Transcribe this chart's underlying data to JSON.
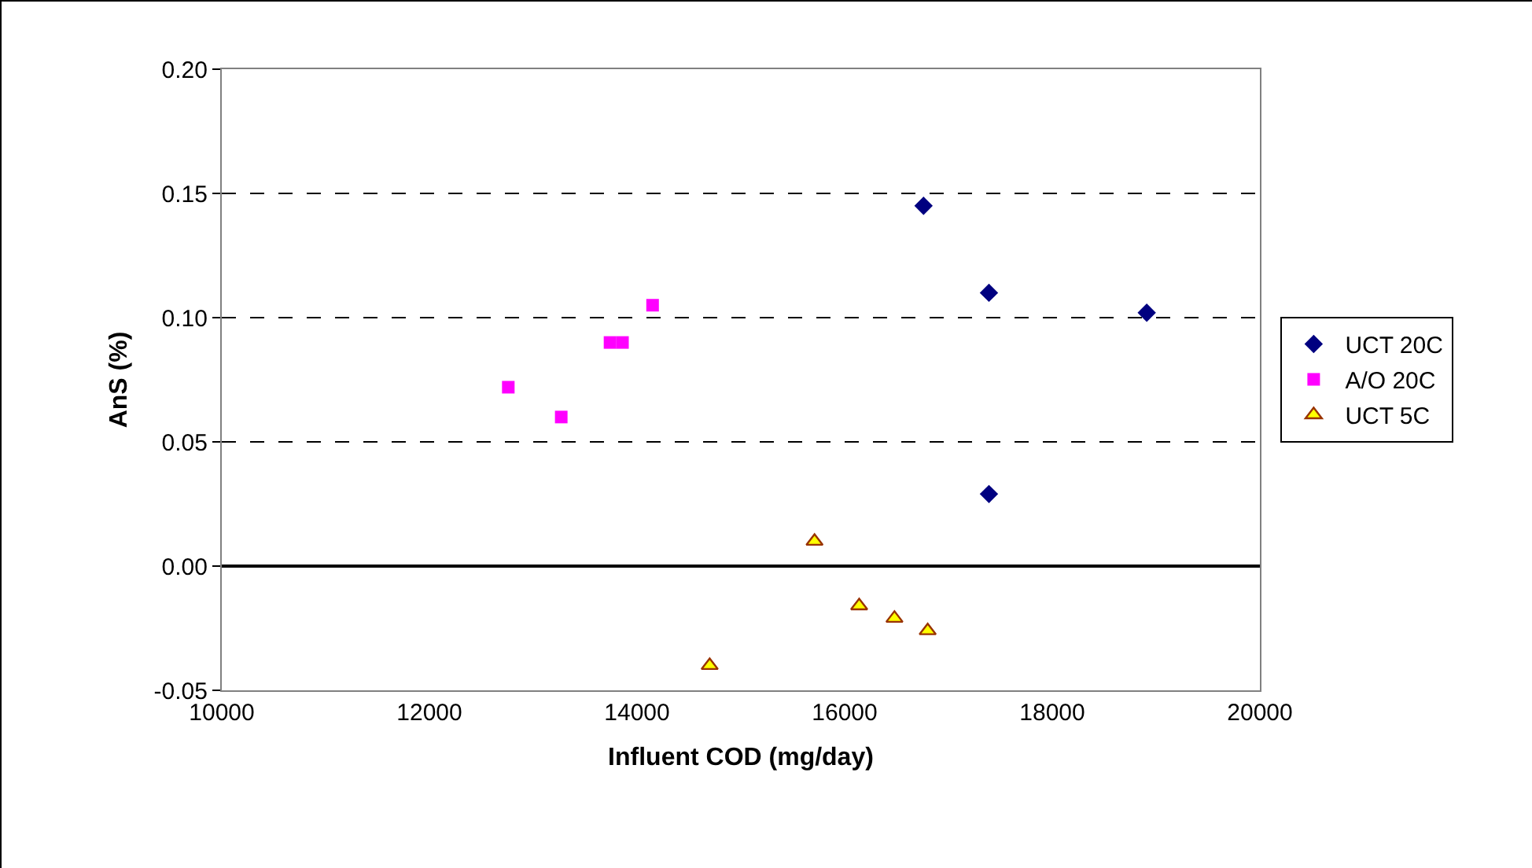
{
  "chart_data": {
    "type": "scatter",
    "xlabel": "Influent COD (mg/day)",
    "ylabel": "AnS (%)",
    "xlim": [
      10000,
      20000
    ],
    "xticks": [
      10000,
      12000,
      14000,
      16000,
      18000,
      20000
    ],
    "ylim": [
      -0.05,
      0.2
    ],
    "yticks": [
      {
        "value": -0.05,
        "label": "-0.05"
      },
      {
        "value": 0,
        "label": "0.00"
      },
      {
        "value": 0.05,
        "label": "0.05"
      },
      {
        "value": 0.1,
        "label": "0.10"
      },
      {
        "value": 0.15,
        "label": "0.15"
      },
      {
        "value": 0.2,
        "label": "0.20"
      }
    ],
    "grid": "y",
    "legend": "right",
    "series": [
      {
        "name": "UCT 20C",
        "color": "#000080",
        "marker": "diamond",
        "x": [
          16760,
          17390,
          18910,
          17390
        ],
        "values": [
          0.145,
          0.11,
          0.102,
          0.029
        ]
      },
      {
        "name": "A/O 20C",
        "color": "#ff00ff",
        "marker": "square",
        "x": [
          12760,
          13270,
          13740,
          13860,
          14150
        ],
        "values": [
          0.072,
          0.06,
          0.09,
          0.09,
          0.105
        ]
      },
      {
        "name": "UCT 5C",
        "color": "#ffff00",
        "marker": "triangle",
        "x": [
          15710,
          16140,
          16480,
          16800,
          14700
        ],
        "values": [
          0.01,
          -0.016,
          -0.021,
          -0.026,
          -0.04
        ]
      }
    ]
  }
}
